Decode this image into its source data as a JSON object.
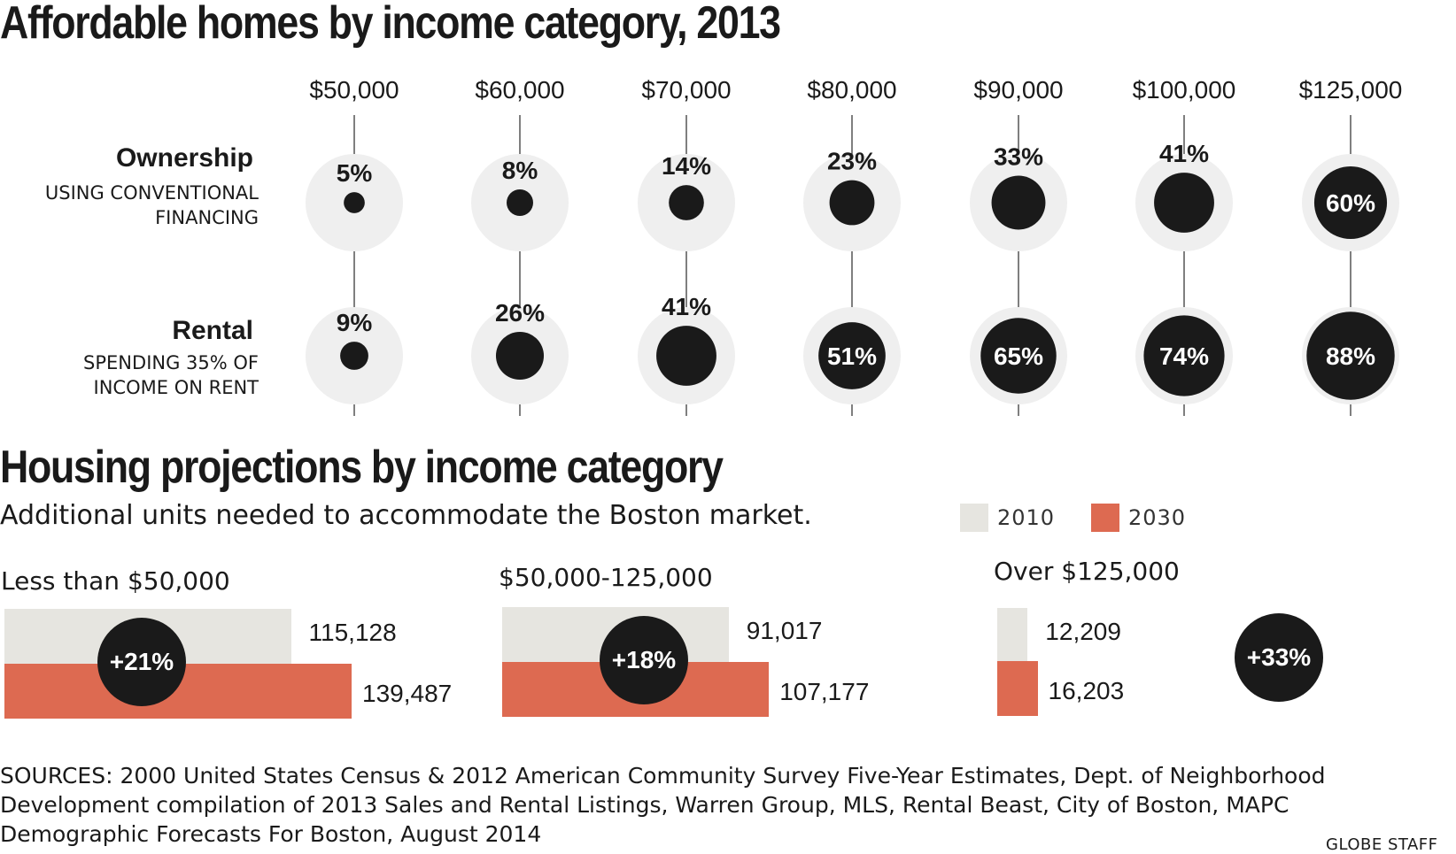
{
  "chart_data": [
    {
      "type": "bubble",
      "title": "Affordable homes by income category, 2013",
      "categories": [
        "$50,000",
        "$60,000",
        "$70,000",
        "$80,000",
        "$90,000",
        "$100,000",
        "$125,000"
      ],
      "series": [
        {
          "name": "Ownership",
          "subtitle_lines": [
            "USING CONVENTIONAL",
            "FINANCING"
          ],
          "values": [
            5,
            8,
            14,
            23,
            33,
            41,
            60
          ],
          "labels": [
            "5%",
            "8%",
            "14%",
            "23%",
            "33%",
            "41%",
            "60%"
          ]
        },
        {
          "name": "Rental",
          "subtitle_lines": [
            "SPENDING 35% OF",
            "INCOME ON RENT"
          ],
          "values": [
            9,
            26,
            41,
            51,
            65,
            74,
            88
          ],
          "labels": [
            "9%",
            "26%",
            "41%",
            "51%",
            "65%",
            "74%",
            "88%"
          ]
        }
      ]
    },
    {
      "type": "bar",
      "title": "Housing projections by income category",
      "subtitle": "Additional units needed to accommodate the Boston market.",
      "legend": [
        {
          "label": "2010",
          "color": "#e6e5e0"
        },
        {
          "label": "2030",
          "color": "#dd6a51"
        }
      ],
      "groups": [
        {
          "name": "Less than $50,000",
          "v2010": 115128,
          "v2030": 139487,
          "label2010": "115,128",
          "label2030": "139,487",
          "change": "+21%"
        },
        {
          "name": "$50,000-125,000",
          "v2010": 91017,
          "v2030": 107177,
          "label2010": "91,017",
          "label2030": "107,177",
          "change": "+18%"
        },
        {
          "name": "Over $125,000",
          "v2010": 12209,
          "v2030": 16203,
          "label2010": "12,209",
          "label2030": "16,203",
          "change": "+33%"
        }
      ]
    }
  ],
  "sources": [
    "SOURCES: 2000 United States Census & 2012 American Community Survey Five-Year Estimates, Dept. of Neighborhood",
    "Development compilation of 2013 Sales and Rental Listings, Warren Group, MLS, Rental Beast, City of Boston, MAPC",
    "Demographic  Forecasts For Boston, August 2014"
  ],
  "credit": "GLOBE STAFF",
  "colors": {
    "dark": "#1a1a1a",
    "ring": "#efefef",
    "bar2010": "#e6e5e0",
    "bar2030": "#dd6a51"
  }
}
